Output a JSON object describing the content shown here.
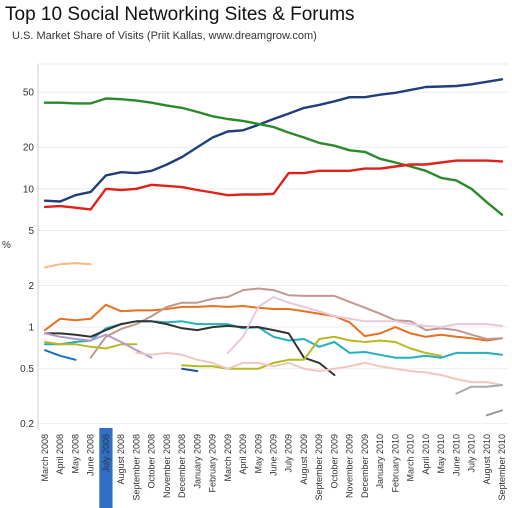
{
  "title": "Top 10 Social Networking Sites & Forums",
  "subtitle": "U.S. Market Share of Visits (Priit Kallas, www.dreamgrow.com)",
  "chart_data": {
    "type": "line",
    "ylabel": "%",
    "y_scale": "log",
    "ylim": [
      0.18,
      80
    ],
    "yticks": [
      {
        "v": 0.2,
        "label": "0.2"
      },
      {
        "v": 0.5,
        "label": "0.5"
      },
      {
        "v": 1,
        "label": "1"
      },
      {
        "v": 2,
        "label": "2"
      },
      {
        "v": 5,
        "label": "5"
      },
      {
        "v": 10,
        "label": "10"
      },
      {
        "v": 20,
        "label": "20"
      },
      {
        "v": 50,
        "label": "50"
      }
    ],
    "grid": "horizontal",
    "highlight_index": 4,
    "highlight_color": "#2f6fc8",
    "categories": [
      "March 2008",
      "April 2008",
      "May 2008",
      "June 2008",
      "July 2008",
      "August 2008",
      "September 2008",
      "October 2008",
      "November 2008",
      "December 2008",
      "January 2009",
      "February 2009",
      "March 2009",
      "April 2009",
      "May 2009",
      "June 2009",
      "July 2009",
      "August 2009",
      "September 2009",
      "October 2009",
      "November 2009",
      "December 2009",
      "January 2010",
      "February 2010",
      "March 2010",
      "April 2010",
      "May 2010",
      "June 2010",
      "July 2010",
      "August 2010",
      "September 2010"
    ],
    "series": [
      {
        "color": "#1f3f7a",
        "values": [
          8.2,
          8.1,
          9.0,
          9.5,
          12.5,
          13.2,
          13.0,
          13.5,
          15.0,
          17.0,
          20.0,
          23.5,
          26.0,
          26.5,
          29.0,
          32.0,
          35.0,
          38.5,
          40.5,
          43.0,
          46.0,
          46.0,
          48.0,
          49.5,
          52.0,
          54.5,
          55.0,
          55.5,
          57.0,
          59.5,
          62.0
        ]
      },
      {
        "color": "#2a8a2a",
        "values": [
          42.0,
          42.0,
          41.5,
          41.5,
          45.0,
          44.5,
          43.5,
          42.0,
          40.0,
          38.5,
          36.0,
          33.5,
          32.0,
          31.0,
          29.5,
          28.0,
          25.5,
          23.5,
          21.5,
          20.5,
          19.0,
          18.5,
          16.5,
          15.5,
          14.5,
          13.5,
          12.0,
          11.5,
          10.0,
          8.0,
          6.5
        ]
      },
      {
        "color": "#e0201a",
        "values": [
          7.4,
          7.5,
          7.3,
          7.1,
          10.0,
          9.8,
          10.0,
          10.7,
          10.5,
          10.3,
          9.8,
          9.4,
          9.0,
          9.1,
          9.1,
          9.2,
          13.0,
          13.0,
          13.5,
          13.5,
          13.5,
          14.0,
          14.0,
          14.5,
          15.0,
          15.0,
          15.5,
          16.0,
          16.0,
          16.0,
          15.8
        ]
      },
      {
        "color": "#e87020",
        "values": [
          0.95,
          1.15,
          1.12,
          1.15,
          1.45,
          1.3,
          1.32,
          1.32,
          1.35,
          1.4,
          1.4,
          1.42,
          1.4,
          1.42,
          1.38,
          1.35,
          1.35,
          1.3,
          1.25,
          1.2,
          1.08,
          0.86,
          0.9,
          1.0,
          0.9,
          0.85,
          0.88,
          0.85,
          0.83,
          0.8,
          0.83
        ]
      },
      {
        "color": "#c09890",
        "values": [
          null,
          null,
          null,
          0.6,
          0.85,
          0.97,
          1.05,
          1.2,
          1.4,
          1.5,
          1.5,
          1.6,
          1.65,
          1.85,
          1.9,
          1.85,
          1.7,
          1.68,
          1.68,
          1.68,
          1.52,
          1.38,
          1.25,
          1.12,
          1.1,
          0.95,
          0.98,
          0.95,
          0.88,
          0.82,
          0.83
        ]
      },
      {
        "color": "#20b0c0",
        "values": [
          0.75,
          0.75,
          0.78,
          0.8,
          0.98,
          1.05,
          1.1,
          1.1,
          1.08,
          1.1,
          1.05,
          1.05,
          1.05,
          0.98,
          1.0,
          0.85,
          0.8,
          0.82,
          0.72,
          0.78,
          0.65,
          0.66,
          0.63,
          0.6,
          0.6,
          0.62,
          0.6,
          0.65,
          0.65,
          0.65,
          0.63
        ]
      },
      {
        "color": "#333333",
        "values": [
          0.9,
          0.9,
          0.88,
          0.85,
          0.95,
          1.05,
          1.1,
          1.1,
          1.05,
          0.98,
          0.95,
          1.0,
          1.02,
          1.0,
          1.0,
          0.95,
          0.9,
          0.6,
          0.55,
          0.45,
          null,
          null,
          null,
          null,
          null,
          null,
          null,
          null,
          null,
          null,
          null
        ]
      },
      {
        "color": "#b8b820",
        "values": [
          0.78,
          0.75,
          0.75,
          0.72,
          0.7,
          0.75,
          0.75,
          null,
          null,
          0.53,
          0.52,
          0.52,
          0.5,
          0.5,
          0.5,
          0.55,
          0.58,
          0.58,
          0.82,
          0.85,
          0.8,
          0.78,
          0.8,
          0.78,
          0.7,
          0.65,
          0.62,
          null,
          null,
          null,
          null
        ]
      },
      {
        "color": "#e8c8e0",
        "values": [
          null,
          null,
          null,
          null,
          null,
          null,
          null,
          null,
          null,
          null,
          null,
          null,
          0.65,
          0.85,
          1.4,
          1.65,
          1.5,
          1.4,
          1.3,
          1.2,
          1.15,
          1.1,
          1.1,
          1.1,
          1.05,
          1.02,
          1.0,
          1.05,
          1.05,
          1.05,
          1.02
        ]
      },
      {
        "color": "#b89ac8",
        "values": [
          0.9,
          0.85,
          0.82,
          0.8,
          0.88,
          0.78,
          0.68,
          0.6,
          null,
          null,
          null,
          null,
          null,
          null,
          null,
          null,
          null,
          null,
          null,
          null,
          null,
          null,
          null,
          null,
          null,
          null,
          null,
          null,
          null,
          null,
          null
        ]
      },
      {
        "color": "#f0c8c0",
        "values": [
          null,
          null,
          null,
          null,
          null,
          null,
          0.65,
          0.63,
          0.65,
          0.63,
          0.58,
          0.55,
          0.5,
          0.55,
          0.55,
          0.52,
          0.55,
          0.5,
          0.48,
          0.5,
          0.52,
          0.55,
          0.52,
          0.5,
          0.48,
          0.47,
          0.45,
          0.42,
          0.4,
          0.4,
          0.38
        ]
      },
      {
        "color": "#1a70c0",
        "values": [
          0.68,
          0.62,
          0.58,
          null,
          null,
          null,
          null,
          null,
          null,
          null,
          null,
          null,
          null,
          null,
          null,
          null,
          null,
          null,
          null,
          null,
          null,
          null,
          null,
          null,
          null,
          null,
          null,
          null,
          null,
          null,
          null
        ]
      },
      {
        "color": "#2050a0",
        "values": [
          null,
          null,
          null,
          null,
          null,
          null,
          null,
          null,
          null,
          0.5,
          0.48,
          null,
          null,
          null,
          null,
          null,
          null,
          null,
          null,
          null,
          null,
          null,
          null,
          null,
          null,
          null,
          null,
          null,
          null,
          null,
          null
        ]
      },
      {
        "color": "#f8b880",
        "values": [
          2.7,
          2.85,
          2.9,
          2.85,
          null,
          null,
          null,
          null,
          null,
          null,
          null,
          null,
          null,
          null,
          null,
          null,
          null,
          null,
          null,
          null,
          null,
          null,
          null,
          null,
          null,
          null,
          null,
          null,
          null,
          null,
          null
        ]
      },
      {
        "color": "#aaaaaa",
        "values": [
          null,
          null,
          null,
          null,
          null,
          null,
          null,
          null,
          null,
          null,
          null,
          null,
          null,
          null,
          null,
          null,
          null,
          null,
          null,
          null,
          null,
          null,
          null,
          null,
          null,
          null,
          null,
          0.33,
          0.37,
          0.37,
          0.38
        ]
      },
      {
        "color": "#999999",
        "values": [
          null,
          null,
          null,
          null,
          null,
          null,
          null,
          null,
          null,
          null,
          null,
          null,
          null,
          null,
          null,
          null,
          null,
          null,
          null,
          null,
          null,
          null,
          null,
          null,
          null,
          null,
          null,
          null,
          null,
          0.23,
          0.25
        ]
      }
    ]
  }
}
